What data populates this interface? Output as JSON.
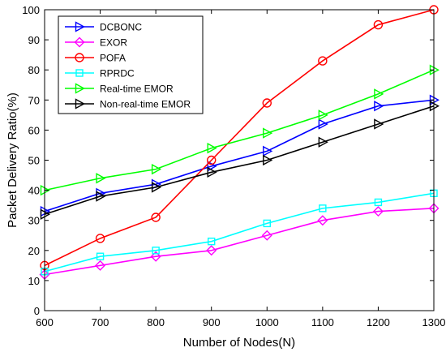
{
  "chart_data": {
    "type": "line",
    "title": "",
    "xlabel": "Number of Nodes(N)",
    "ylabel": "Packet Delivery Ratio(%)",
    "xlim": [
      600,
      1300
    ],
    "ylim": [
      0,
      100
    ],
    "xticks": [
      600,
      700,
      800,
      900,
      1000,
      1100,
      1200,
      1300
    ],
    "yticks": [
      0,
      10,
      20,
      30,
      40,
      50,
      60,
      70,
      80,
      90,
      100
    ],
    "grid": false,
    "legend_position": "top-left",
    "x": [
      600,
      700,
      800,
      900,
      1000,
      1100,
      1200,
      1300
    ],
    "series": [
      {
        "name": "DCBONC",
        "color": "#0000ff",
        "marker": "triangle-right",
        "values": [
          33,
          39,
          42,
          48,
          53,
          62,
          68,
          70
        ]
      },
      {
        "name": "EXOR",
        "color": "#ff00ff",
        "marker": "diamond",
        "values": [
          12,
          15,
          18,
          20,
          25,
          30,
          33,
          34
        ]
      },
      {
        "name": "POFA",
        "color": "#ff0000",
        "marker": "circle",
        "values": [
          15,
          24,
          31,
          50,
          69,
          83,
          95,
          100
        ]
      },
      {
        "name": "RPRDC",
        "color": "#00ffff",
        "marker": "square",
        "values": [
          13,
          18,
          20,
          23,
          29,
          34,
          36,
          39
        ]
      },
      {
        "name": "Real-time EMOR",
        "color": "#00ff00",
        "marker": "triangle-right",
        "values": [
          40,
          44,
          47,
          54,
          59,
          65,
          72,
          80
        ]
      },
      {
        "name": "Non-real-time EMOR",
        "color": "#000000",
        "marker": "triangle-right",
        "values": [
          32,
          38,
          41,
          46,
          50,
          56,
          62,
          68
        ]
      }
    ]
  }
}
